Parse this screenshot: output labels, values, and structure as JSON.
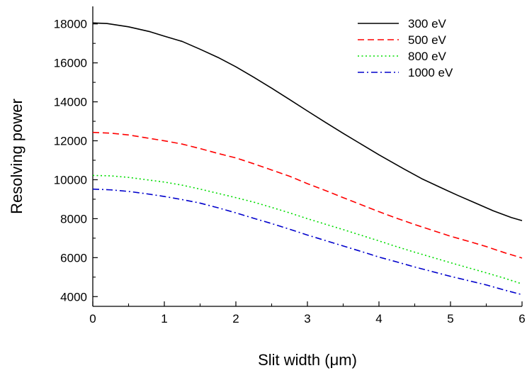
{
  "chart_data": {
    "type": "line",
    "xlabel": "Slit width (μm)",
    "ylabel": "Resolving power",
    "xlim": [
      0,
      6
    ],
    "ylim": [
      3500,
      18900
    ],
    "x_ticks": [
      0,
      1,
      2,
      3,
      4,
      5,
      6
    ],
    "y_ticks": [
      4000,
      6000,
      8000,
      10000,
      12000,
      14000,
      16000,
      18000
    ],
    "x_tick_labels": [
      "0",
      "1",
      "2",
      "3",
      "4",
      "5",
      "6"
    ],
    "y_tick_labels": [
      "4000",
      "6000",
      "8000",
      "10000",
      "12000",
      "14000",
      "16000",
      "18000"
    ],
    "grid": false,
    "legend_position": "top-right",
    "series": [
      {
        "name": "300 eV",
        "color": "#000000",
        "dash": "solid",
        "x": [
          0,
          0.2,
          0.5,
          0.8,
          1.0,
          1.25,
          1.5,
          1.75,
          2.0,
          2.25,
          2.5,
          2.75,
          3.0,
          3.25,
          3.5,
          3.75,
          4.0,
          4.35,
          4.6,
          4.85,
          5.1,
          5.35,
          5.6,
          5.85,
          6.0
        ],
        "values": [
          18050,
          18020,
          17850,
          17600,
          17370,
          17100,
          16700,
          16280,
          15800,
          15260,
          14700,
          14120,
          13530,
          12950,
          12380,
          11830,
          11280,
          10550,
          10050,
          9620,
          9200,
          8800,
          8400,
          8060,
          7900
        ]
      },
      {
        "name": "500 eV",
        "color": "#ff0000",
        "dash": "dashed",
        "x": [
          0,
          0.25,
          0.5,
          0.75,
          1.0,
          1.25,
          1.5,
          1.75,
          2.0,
          2.25,
          2.5,
          2.75,
          3.0,
          3.25,
          3.5,
          3.75,
          4.0,
          4.25,
          4.5,
          4.75,
          5.0,
          5.25,
          5.5,
          5.75,
          6.0
        ],
        "values": [
          12430,
          12390,
          12300,
          12150,
          12000,
          11830,
          11600,
          11350,
          11120,
          10820,
          10500,
          10180,
          9800,
          9450,
          9080,
          8720,
          8360,
          8020,
          7700,
          7400,
          7100,
          6840,
          6570,
          6260,
          5980
        ]
      },
      {
        "name": "800 eV",
        "color": "#00dd00",
        "dash": "dotted",
        "x": [
          0,
          0.25,
          0.5,
          0.75,
          1.0,
          1.25,
          1.5,
          1.75,
          2.0,
          2.25,
          2.5,
          2.75,
          3.0,
          3.25,
          3.5,
          3.75,
          4.0,
          4.25,
          4.5,
          4.75,
          5.0,
          5.25,
          5.5,
          5.75,
          6.0
        ],
        "values": [
          10220,
          10200,
          10120,
          10000,
          9880,
          9720,
          9520,
          9300,
          9080,
          8850,
          8580,
          8300,
          8000,
          7720,
          7440,
          7150,
          6860,
          6560,
          6280,
          6010,
          5740,
          5480,
          5220,
          4950,
          4650
        ]
      },
      {
        "name": "1000 eV",
        "color": "#0000cc",
        "dash": "dashdot",
        "x": [
          0,
          0.25,
          0.5,
          0.75,
          1.0,
          1.25,
          1.5,
          1.75,
          2.0,
          2.25,
          2.5,
          2.75,
          3.0,
          3.25,
          3.5,
          3.75,
          4.0,
          4.25,
          4.5,
          4.75,
          5.0,
          5.25,
          5.5,
          5.75,
          6.0
        ],
        "values": [
          9520,
          9480,
          9400,
          9280,
          9140,
          8980,
          8800,
          8560,
          8300,
          8020,
          7750,
          7460,
          7160,
          6880,
          6600,
          6320,
          6030,
          5780,
          5520,
          5280,
          5040,
          4820,
          4600,
          4340,
          4100
        ]
      }
    ]
  }
}
